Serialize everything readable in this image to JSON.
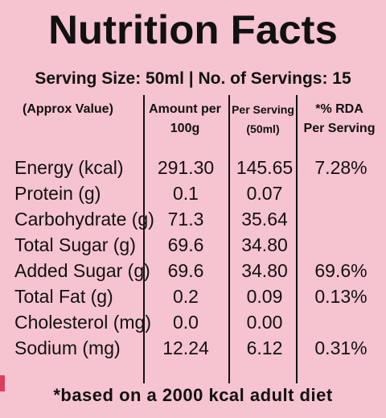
{
  "title": "Nutrition Facts",
  "serving_line": "Serving Size: 50ml  |  No. of Servings: 15",
  "headers": {
    "col0": "(Approx Value)",
    "col1_line1": "Amount per",
    "col1_line2": "100g",
    "col2_line1": "Per Serving",
    "col2_line2": "(50ml)",
    "col3_line1": "*% RDA",
    "col3_line2": "Per Serving"
  },
  "rows": [
    {
      "nutrient": "Energy (kcal)",
      "per100": "291.30",
      "perServing": "145.65",
      "rda": "7.28%"
    },
    {
      "nutrient": "Protein (g)",
      "per100": "0.1",
      "perServing": "0.07",
      "rda": ""
    },
    {
      "nutrient": "Carbohydrate (g)",
      "per100": "71.3",
      "perServing": "35.64",
      "rda": ""
    },
    {
      "nutrient": "Total Sugar (g)",
      "per100": "69.6",
      "perServing": "34.80",
      "rda": ""
    },
    {
      "nutrient": "Added Sugar (g)",
      "per100": "69.6",
      "perServing": "34.80",
      "rda": "69.6%"
    },
    {
      "nutrient": "Total Fat (g)",
      "per100": "0.2",
      "perServing": "0.09",
      "rda": "0.13%"
    },
    {
      "nutrient": "Cholesterol (mg)",
      "per100": "0.0",
      "perServing": "0.00",
      "rda": ""
    },
    {
      "nutrient": "Sodium (mg)",
      "per100": "12.24",
      "perServing": "6.12",
      "rda": "0.31%"
    }
  ],
  "footer": "*based on a 2000 kcal adult diet",
  "colors": {
    "background": "#f6c3d1",
    "text": "#111111"
  }
}
